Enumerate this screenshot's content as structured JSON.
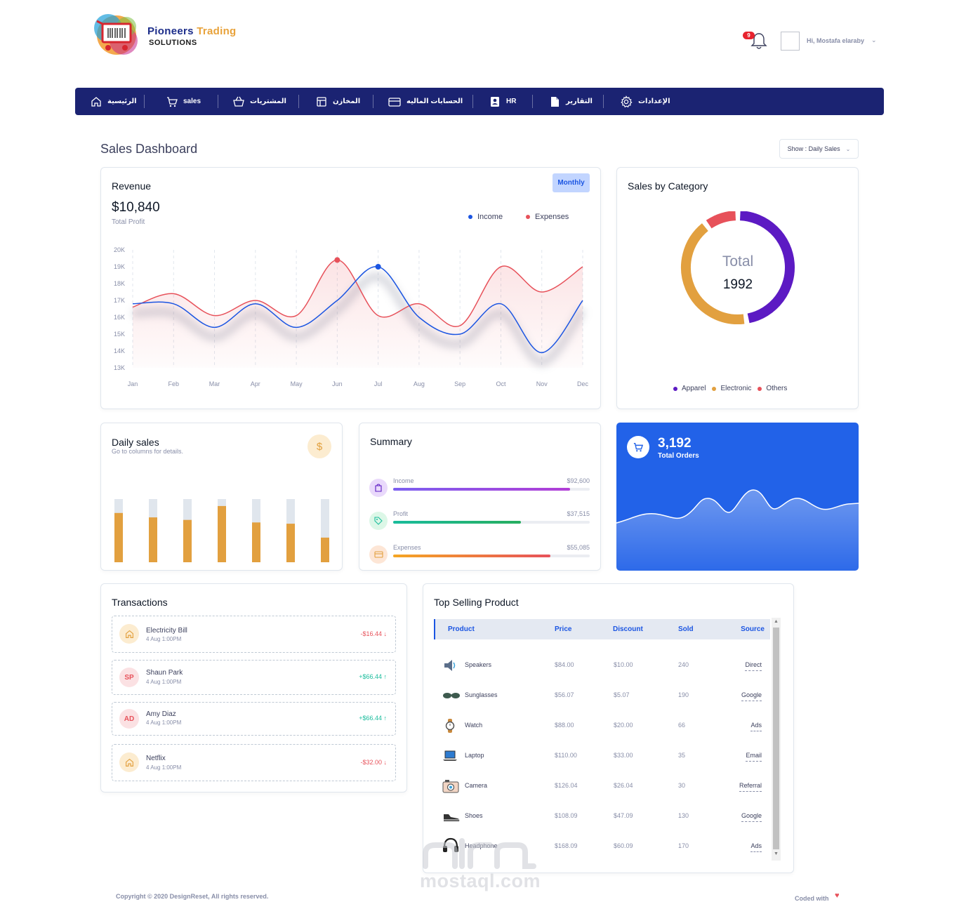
{
  "brand": {
    "name_part1": "Pioneers",
    "name_part2": "Trading",
    "sub": "SOLUTIONS"
  },
  "header": {
    "notification_count": "9",
    "user_greeting": "Hi, Mostafa elaraby",
    "user_chevron": "chevron-down-icon"
  },
  "nav": {
    "items": [
      {
        "label": "الرئيسية",
        "icon": "home-icon"
      },
      {
        "label": "sales",
        "icon": "cart-icon"
      },
      {
        "label": "المشتريات",
        "icon": "basket-icon"
      },
      {
        "label": "المخازن",
        "icon": "layout-icon"
      },
      {
        "label": "الحسابات الماليه",
        "icon": "credit-card-icon"
      },
      {
        "label": "HR",
        "icon": "id-badge-icon"
      },
      {
        "label": "التقارير",
        "icon": "file-icon"
      },
      {
        "label": "الإعدادات",
        "icon": "gear-icon"
      }
    ],
    "colors": {
      "bg": "#1b2372"
    }
  },
  "page": {
    "title": "Sales Dashboard",
    "show_select": "Show : Daily Sales"
  },
  "revenue": {
    "title": "Revenue",
    "total": "$10,840",
    "total_label": "Total Profit",
    "period_button": "Monthly",
    "legend": {
      "income": "Income",
      "expenses": "Expenses"
    },
    "y_ticks": [
      "20K",
      "19K",
      "18K",
      "17K",
      "16K",
      "15K",
      "14K",
      "13K"
    ]
  },
  "chart_data": {
    "type": "line",
    "title": "Revenue",
    "x": [
      "Jan",
      "Feb",
      "Mar",
      "Apr",
      "May",
      "Jun",
      "Jul",
      "Aug",
      "Sep",
      "Oct",
      "Nov",
      "Dec"
    ],
    "ylim": [
      13000,
      20000
    ],
    "series": [
      {
        "name": "Income",
        "color": "#1b55e2",
        "values": [
          16800,
          16800,
          15400,
          16800,
          15400,
          17000,
          19000,
          16000,
          15000,
          16800,
          13900,
          17000
        ]
      },
      {
        "name": "Expenses",
        "color": "#e7515a",
        "values": [
          16600,
          17400,
          16100,
          17000,
          16100,
          19400,
          16100,
          16800,
          15500,
          19000,
          17500,
          19000
        ]
      }
    ],
    "highlight_points": [
      {
        "series": "Expenses",
        "x": "Jun"
      },
      {
        "series": "Income",
        "x": "Jul"
      }
    ],
    "grid": true,
    "legend_position": "top-right"
  },
  "category": {
    "title": "Sales by Category",
    "total_label": "Total",
    "total_value": "1992",
    "items": [
      {
        "name": "Apparel",
        "color": "#5c1ac3",
        "value": 945
      },
      {
        "name": "Electronic",
        "color": "#e2a03f",
        "value": 845
      },
      {
        "name": "Others",
        "color": "#e7515a",
        "value": 202
      }
    ]
  },
  "daily_sales": {
    "title": "Daily sales",
    "subtitle": "Go to columns for details.",
    "icon": "dollar-icon",
    "bars": [
      0.78,
      0.71,
      0.67,
      0.89,
      0.63,
      0.61,
      0.39
    ],
    "colors": {
      "fill": "#e2a03f",
      "track": "#e0e6ed"
    }
  },
  "summary": {
    "title": "Summary",
    "rows": [
      {
        "label": "Income",
        "value": "$92,600",
        "percent": 90,
        "icon": "shopping-bag-icon",
        "color": "#8c4bd8"
      },
      {
        "label": "Profit",
        "value": "$37,515",
        "percent": 65,
        "icon": "tag-icon",
        "color": "#1abc9c"
      },
      {
        "label": "Expenses",
        "value": "$55,085",
        "percent": 80,
        "icon": "credit-card-icon",
        "color": "#e95f2b"
      }
    ]
  },
  "orders": {
    "value": "3,192",
    "label": "Total Orders",
    "icon": "cart-icon",
    "color": "#2262e8"
  },
  "transactions": {
    "title": "Transactions",
    "items": [
      {
        "initials": "",
        "icon": "home-icon",
        "name": "Electricity Bill",
        "date": "4 Aug 1:00PM",
        "amount": "-$16.44",
        "type": "debit"
      },
      {
        "initials": "SP",
        "icon": "",
        "name": "Shaun Park",
        "date": "4 Aug 1:00PM",
        "amount": "+$66.44",
        "type": "credit"
      },
      {
        "initials": "AD",
        "icon": "",
        "name": "Amy Diaz",
        "date": "4 Aug 1:00PM",
        "amount": "+$66.44",
        "type": "credit"
      },
      {
        "initials": "",
        "icon": "home-icon",
        "name": "Netflix",
        "date": "4 Aug 1:00PM",
        "amount": "-$32.00",
        "type": "debit"
      }
    ]
  },
  "top_selling": {
    "title": "Top Selling Product",
    "headers": {
      "product": "Product",
      "price": "Price",
      "discount": "Discount",
      "sold": "Sold",
      "source": "Source"
    },
    "rows": [
      {
        "icon": "speaker-icon",
        "product": "Speakers",
        "price": "$84.00",
        "discount": "$10.00",
        "sold": "240",
        "source": "Direct"
      },
      {
        "icon": "sunglasses-icon",
        "product": "Sunglasses",
        "price": "$56.07",
        "discount": "$5.07",
        "sold": "190",
        "source": "Google"
      },
      {
        "icon": "watch-icon",
        "product": "Watch",
        "price": "$88.00",
        "discount": "$20.00",
        "sold": "66",
        "source": "Ads"
      },
      {
        "icon": "laptop-icon",
        "product": "Laptop",
        "price": "$110.00",
        "discount": "$33.00",
        "sold": "35",
        "source": "Email"
      },
      {
        "icon": "camera-icon",
        "product": "Camera",
        "price": "$126.04",
        "discount": "$26.04",
        "sold": "30",
        "source": "Referral"
      },
      {
        "icon": "shoe-icon",
        "product": "Shoes",
        "price": "$108.09",
        "discount": "$47.09",
        "sold": "130",
        "source": "Google"
      },
      {
        "icon": "headphone-icon",
        "product": "Headphone",
        "price": "$168.09",
        "discount": "$60.09",
        "sold": "170",
        "source": "Ads"
      }
    ]
  },
  "footer": {
    "copyright": "Copyright © 2020 DesignReset, All rights reserved.",
    "coded_with": "Coded with"
  },
  "watermark": {
    "text": "mostaql.com"
  }
}
